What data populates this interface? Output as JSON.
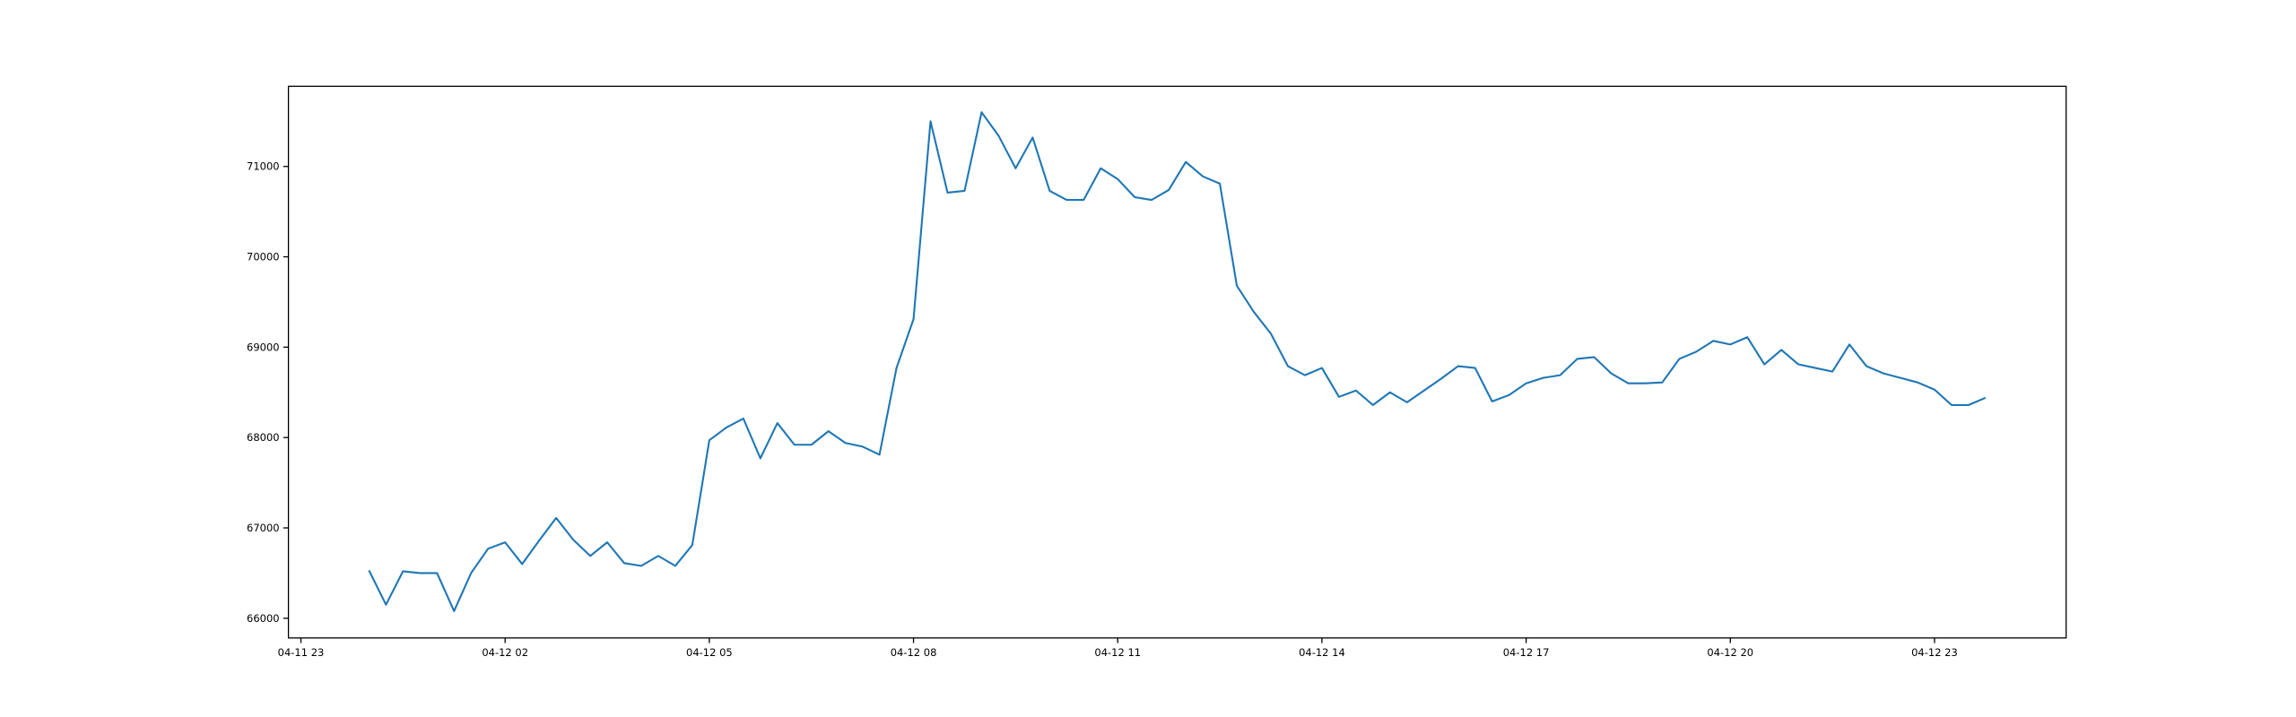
{
  "chart_data": {
    "type": "line",
    "x": [
      "04-12 00:00",
      "04-12 00:15",
      "04-12 00:30",
      "04-12 00:45",
      "04-12 01:00",
      "04-12 01:15",
      "04-12 01:30",
      "04-12 01:45",
      "04-12 02:00",
      "04-12 02:15",
      "04-12 02:30",
      "04-12 02:45",
      "04-12 03:00",
      "04-12 03:15",
      "04-12 03:30",
      "04-12 03:45",
      "04-12 04:00",
      "04-12 04:15",
      "04-12 04:30",
      "04-12 04:45",
      "04-12 05:00",
      "04-12 05:15",
      "04-12 05:30",
      "04-12 05:45",
      "04-12 06:00",
      "04-12 06:15",
      "04-12 06:30",
      "04-12 06:45",
      "04-12 07:00",
      "04-12 07:15",
      "04-12 07:30",
      "04-12 07:45",
      "04-12 08:00",
      "04-12 08:15",
      "04-12 08:30",
      "04-12 08:45",
      "04-12 09:00",
      "04-12 09:15",
      "04-12 09:30",
      "04-12 09:45",
      "04-12 10:00",
      "04-12 10:15",
      "04-12 10:30",
      "04-12 10:45",
      "04-12 11:00",
      "04-12 11:15",
      "04-12 11:30",
      "04-12 11:45",
      "04-12 12:00",
      "04-12 12:15",
      "04-12 12:30",
      "04-12 12:45",
      "04-12 13:00",
      "04-12 13:15",
      "04-12 13:30",
      "04-12 13:45",
      "04-12 14:00",
      "04-12 14:15",
      "04-12 14:30",
      "04-12 14:45",
      "04-12 15:00",
      "04-12 15:15",
      "04-12 15:30",
      "04-12 15:45",
      "04-12 16:00",
      "04-12 16:15",
      "04-12 16:30",
      "04-12 16:45",
      "04-12 17:00",
      "04-12 17:15",
      "04-12 17:30",
      "04-12 17:45",
      "04-12 18:00",
      "04-12 18:15",
      "04-12 18:30",
      "04-12 18:45",
      "04-12 19:00",
      "04-12 19:15",
      "04-12 19:30",
      "04-12 19:45",
      "04-12 20:00",
      "04-12 20:15",
      "04-12 20:30",
      "04-12 20:45",
      "04-12 21:00",
      "04-12 21:15",
      "04-12 21:30",
      "04-12 21:45",
      "04-12 22:00",
      "04-12 22:15",
      "04-12 22:30",
      "04-12 22:45",
      "04-12 23:00",
      "04-12 23:15",
      "04-12 23:30",
      "04-12 23:45"
    ],
    "values": [
      66530,
      66150,
      66520,
      66500,
      66500,
      66080,
      66500,
      66770,
      66840,
      66600,
      66860,
      67110,
      66870,
      66690,
      66840,
      66610,
      66580,
      66690,
      66580,
      66810,
      67970,
      68110,
      68210,
      67770,
      68160,
      67920,
      67920,
      68070,
      67940,
      67900,
      67810,
      68770,
      69310,
      71500,
      70710,
      70730,
      71600,
      71340,
      70980,
      71320,
      70730,
      70630,
      70630,
      70980,
      70860,
      70660,
      70630,
      70740,
      71050,
      70890,
      70810,
      69680,
      69390,
      69150,
      68790,
      68690,
      68770,
      68450,
      68520,
      68360,
      68500,
      68390,
      68520,
      68650,
      68790,
      68770,
      68400,
      68470,
      68600,
      68660,
      68690,
      68870,
      68890,
      68710,
      68600,
      68600,
      68610,
      68870,
      68950,
      69070,
      69030,
      69110,
      68810,
      68970,
      68810,
      68770,
      68730,
      69030,
      68790,
      68710,
      68660,
      68610,
      68530,
      68360,
      68360,
      68440
    ],
    "color": "#1f77b4",
    "xlim": [
      "04-11 22:49",
      "04-13 00:56"
    ],
    "xticks": [
      "04-11 23",
      "04-12 02",
      "04-12 05",
      "04-12 08",
      "04-12 11",
      "04-12 14",
      "04-12 17",
      "04-12 20",
      "04-12 23"
    ],
    "ylim": [
      65782,
      71887
    ],
    "yticks": [
      66000,
      67000,
      68000,
      69000,
      70000,
      71000
    ]
  }
}
